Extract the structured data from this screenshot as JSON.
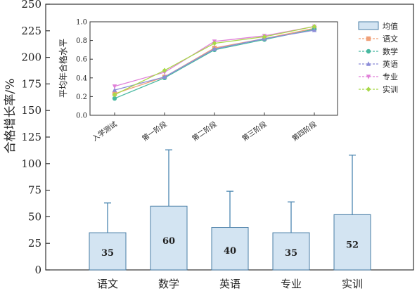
{
  "chart_data": [
    {
      "type": "bar",
      "ylabel": "合格增长率/%",
      "xlabel": "",
      "ylim": [
        0,
        250
      ],
      "yticks": [
        0,
        25,
        50,
        75,
        100,
        125,
        150,
        175,
        200,
        225,
        250
      ],
      "categories": [
        "语文",
        "数学",
        "英语",
        "专业",
        "实训"
      ],
      "series": [
        {
          "name": "均值",
          "values": [
            35,
            60,
            40,
            35,
            52
          ],
          "error_upper": [
            63,
            113,
            74,
            64,
            108
          ]
        }
      ],
      "data_labels": [
        "35",
        "60",
        "40",
        "35",
        "52"
      ],
      "colors": {
        "bar_fill": "#d3e4f2",
        "bar_stroke": "#4a7ea6",
        "error_bar": "#4a86b0"
      },
      "grid": false
    },
    {
      "type": "line",
      "ylabel": "平均年合格水平",
      "xlabel": "",
      "ylim": [
        0.0,
        1.0
      ],
      "yticks": [
        "0.0",
        "0.2",
        "0.4",
        "0.6",
        "0.8",
        "1.0"
      ],
      "categories": [
        "入学测试",
        "第一阶段",
        "第二阶段",
        "第三阶段",
        "第四阶段"
      ],
      "series": [
        {
          "name": "语文",
          "values": [
            0.23,
            0.41,
            0.72,
            0.82,
            0.93
          ],
          "color": "#f0a078",
          "marker": "square"
        },
        {
          "name": "数学",
          "values": [
            0.18,
            0.4,
            0.7,
            0.81,
            0.92
          ],
          "color": "#48b8a0",
          "marker": "circle"
        },
        {
          "name": "英语",
          "values": [
            0.27,
            0.41,
            0.71,
            0.82,
            0.91
          ],
          "color": "#8c8cd8",
          "marker": "triangle-up"
        },
        {
          "name": "专业",
          "values": [
            0.31,
            0.46,
            0.79,
            0.85,
            0.95
          ],
          "color": "#e080d8",
          "marker": "triangle-down"
        },
        {
          "name": "实训",
          "values": [
            0.22,
            0.48,
            0.77,
            0.84,
            0.95
          ],
          "color": "#a8d848",
          "marker": "diamond"
        }
      ],
      "legend_position": "right"
    }
  ]
}
